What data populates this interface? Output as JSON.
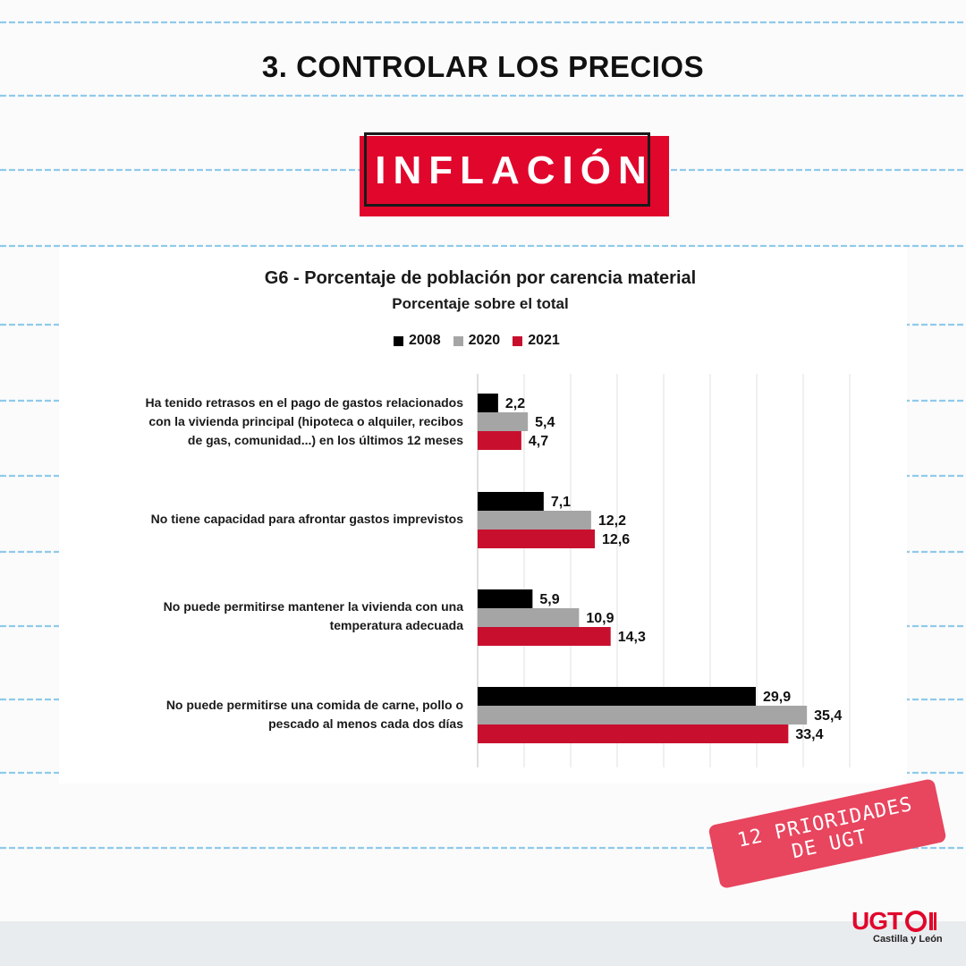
{
  "page": {
    "heading": "3. CONTROLAR LOS PRECIOS",
    "banner": "INFLACIÓN",
    "stamp_line1": "12 PRIORIDADES",
    "stamp_line2": "DE UGT",
    "logo_text": "UGT",
    "logo_sub": "Castilla y León",
    "colors": {
      "accent": "#e1062c",
      "stamp": "#e8455e"
    }
  },
  "chart_data": {
    "type": "bar",
    "orientation": "horizontal",
    "title": "G6 - Porcentaje de población por carencia material",
    "subtitle": "Porcentaje sobre el total",
    "categories": [
      "Ha tenido retrasos en el pago de gastos relacionados con la vivienda principal (hipoteca o alquiler, recibos de gas, comunidad...) en los últimos 12 meses",
      "No tiene capacidad para afrontar gastos imprevistos",
      "No puede permitirse mantener la vivienda con una temperatura adecuada",
      "No puede permitirse una comida de carne, pollo o pescado al menos cada dos días"
    ],
    "category_lines": [
      [
        "Ha tenido retrasos en el pago de gastos relacionados",
        "con la vivienda principal (hipoteca o alquiler, recibos",
        "de gas, comunidad...) en los últimos 12 meses"
      ],
      [
        "No tiene capacidad para afrontar gastos imprevistos"
      ],
      [
        "No puede permitirse mantener la vivienda con una",
        "temperatura adecuada"
      ],
      [
        "No puede permitirse una comida de carne, pollo o",
        "pescado al menos cada dos días"
      ]
    ],
    "series": [
      {
        "name": "2008",
        "color": "#000000",
        "values": [
          2.2,
          7.1,
          5.9,
          29.9
        ],
        "labels": [
          "2,2",
          "7,1",
          "5,9",
          "29,9"
        ]
      },
      {
        "name": "2020",
        "color": "#a5a5a5",
        "values": [
          5.4,
          12.2,
          10.9,
          35.4
        ],
        "labels": [
          "5,4",
          "12,2",
          "10,9",
          "35,4"
        ]
      },
      {
        "name": "2021",
        "color": "#c8102e",
        "values": [
          4.7,
          12.6,
          14.3,
          33.4
        ],
        "labels": [
          "4,7",
          "12,6",
          "14,3",
          "33,4"
        ]
      }
    ],
    "xlim": [
      0,
      40
    ],
    "grid": true,
    "legend": "top-center"
  }
}
